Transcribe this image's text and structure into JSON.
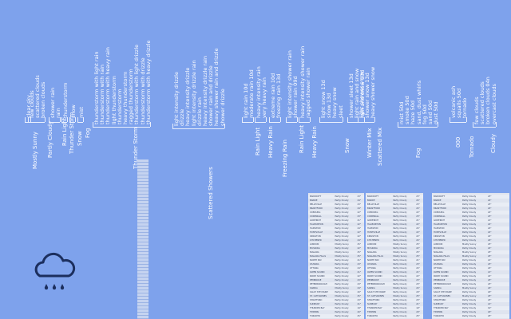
{
  "groups": {
    "mostly_sunny": {
      "name": "Mostly Sunny",
      "items": [
        "clear sky"
      ]
    },
    "partly_cloudy": {
      "name": "Partly Cloudy",
      "items": [
        "few clouds",
        "scattered clouds",
        "broken clouds"
      ]
    },
    "rain_light": {
      "name": "Rain Light",
      "items": [
        "shower rain",
        "rain"
      ]
    },
    "thunder_storm_small": {
      "name": "Thunder Storm",
      "items": [
        "thunderstorm"
      ]
    },
    "snow_small": {
      "name": "Snow",
      "items": [
        "snow"
      ]
    },
    "fog_small": {
      "name": "Fog",
      "items": [
        "mist"
      ]
    },
    "thunder_storm": {
      "name": "Thunder Storm",
      "items": [
        "thunderstorm with light rain",
        "thunderstorm with rain",
        "thunderstorm with heavy rain",
        "light thunderstorm",
        "thunderstorm",
        "heavy thunderstorm",
        "ragged thunderstorm",
        "thunderstorm with light drizzle",
        "thunderstorm with drizzle",
        "thunderstorm with heavy drizzle"
      ]
    },
    "scattered_showers": {
      "name": "Scattered Showers",
      "items": [
        "light intensity drizzle",
        "drizzle",
        "heavy intensity drizzle",
        "light intensity drizzle rain",
        "drizzle rain",
        "heavy intensity drizzle rain",
        "shower rain and drizzle",
        "heavy shower rain and drizzle",
        "shower drizzle"
      ]
    },
    "rain_light2": {
      "name": "Rain Light",
      "items": [
        "light rain  10d",
        "moderate rain  10d"
      ]
    },
    "heavy_rain": {
      "name": "Heavy Rain",
      "items": [
        "heavy intensity rain",
        "very heavy rain"
      ]
    },
    "freezing_rain": {
      "name": "Freezing Rain",
      "items": [
        "extreme rain  10d",
        "freezing rain  13d"
      ]
    },
    "rain_light3": {
      "name": "Rain Light",
      "items": [
        "light intensity shower rain",
        "shower rain  09d"
      ]
    },
    "heavy_rain2": {
      "name": "Heavy Rain",
      "items": [
        "heavy intensity shower rain",
        "ragged shower rain"
      ]
    },
    "snow": {
      "name": "Snow",
      "items": [
        "light snow  13d",
        "snow  13d",
        "heavy snow",
        "sleet"
      ]
    },
    "winter_mix": {
      "name": "Winter Mix",
      "items": [
        "shower sleet  13d",
        "light rain and snow",
        "rain and snow  13d"
      ]
    },
    "scattered_mix": {
      "name": "Scattered Mix",
      "items": [
        "light shower snow",
        "shower snow  13d",
        "heavy shower snow"
      ]
    },
    "fog": {
      "name": "Fog",
      "items": [
        "mist  50d",
        "smoke  50d",
        "haze  50d",
        "sand, dust whirls",
        "fog  50d",
        "sand  50d",
        "dust  50d"
      ]
    },
    "tornado": {
      "name": "Tornado",
      "items": [
        "volcanic ash",
        "squalls  50d",
        "tornado"
      ]
    },
    "zero": {
      "name": "000",
      "items": []
    },
    "cloudy": {
      "name": "Cloudy",
      "items": [
        "few clouds",
        "scattered clouds",
        "broken clouds  04n",
        "overcast clouds"
      ]
    }
  },
  "tables": [
    {
      "rows": [
        [
          "BANCROFT",
          "Partly Cloudy",
          "23°"
        ],
        [
          "BARRIE",
          "Partly Cloudy",
          "24°"
        ],
        [
          "BELLEVILLE",
          "Partly Cloudy",
          "23°"
        ],
        [
          "BRANTFORD",
          "Partly Cloudy",
          "24°"
        ],
        [
          "COBOURG",
          "Partly Cloudy",
          "22°"
        ],
        [
          "CORNWALL",
          "Partly Cloudy",
          "23°"
        ],
        [
          "GODERICH",
          "Partly Cloudy",
          "21°"
        ],
        [
          "HALIBURTON",
          "Partly Cloudy",
          "22°"
        ],
        [
          "HAMILTON",
          "Partly Cloudy",
          "24°"
        ],
        [
          "HUNTSVILLE",
          "Partly Cloudy",
          "22°"
        ],
        [
          "KINGSTON",
          "Partly Cloudy",
          "22°"
        ],
        [
          "KITCHENER",
          "Partly Cloudy",
          "24°"
        ],
        [
          "LONDON",
          "Mostly Sunny",
          "25°"
        ],
        [
          "MUSKOKA",
          "Partly Cloudy",
          "22°"
        ],
        [
          "NIAGARA",
          "Mostly Sunny",
          "25°"
        ],
        [
          "NIAGARA FALLS",
          "Mostly Sunny",
          "25°"
        ],
        [
          "NORTH BAY",
          "Partly Cloudy",
          "21°"
        ],
        [
          "OSHAWA",
          "Partly Cloudy",
          "23°"
        ],
        [
          "OTTAWA",
          "Partly Cloudy",
          "24°"
        ],
        [
          "OWEN SOUND",
          "Partly Cloudy",
          "21°"
        ],
        [
          "PARRY SOUND",
          "Partly Cloudy",
          "22°"
        ],
        [
          "PEMBROKE",
          "Partly Cloudy",
          "23°"
        ],
        [
          "PETERBOROUGH",
          "Partly Cloudy",
          "23°"
        ],
        [
          "SARNIA",
          "Mostly Sunny",
          "24°"
        ],
        [
          "SAULT STE MARIE",
          "Partly Cloudy",
          "20°"
        ],
        [
          "ST. CATHARINES",
          "Mostly Sunny",
          "25°"
        ],
        [
          "STRATFORD",
          "Partly Cloudy",
          "23°"
        ],
        [
          "SUDBURY",
          "Partly Cloudy",
          "21°"
        ],
        [
          "THUNDER BAY",
          "Partly Cloudy",
          "19°"
        ],
        [
          "TIMMINS",
          "Partly Cloudy",
          "20°"
        ],
        [
          "TORONTO",
          "Partly Cloudy",
          "25°"
        ]
      ]
    }
  ]
}
